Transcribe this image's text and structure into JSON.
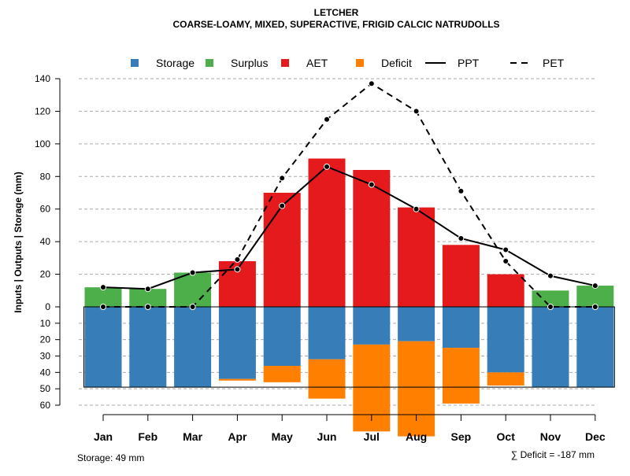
{
  "chart_data": {
    "type": "bar",
    "title": "LETCHER",
    "subtitle": "COARSE-LOAMY, MIXED, SUPERACTIVE, FRIGID CALCIC NATRUDOLLS",
    "ylabel": "Inputs | Outputs | Storage    (mm)",
    "categories": [
      "Jan",
      "Feb",
      "Mar",
      "Apr",
      "May",
      "Jun",
      "Jul",
      "Aug",
      "Sep",
      "Oct",
      "Nov",
      "Dec"
    ],
    "positive_ticks": [
      "0",
      "20",
      "40",
      "60",
      "80",
      "100",
      "120",
      "140"
    ],
    "negative_ticks": [
      "10",
      "20",
      "30",
      "40",
      "50",
      "60"
    ],
    "ylim_top": [
      0,
      140
    ],
    "ylim_bottom": [
      0,
      60
    ],
    "legend": [
      {
        "label": "Storage",
        "kind": "box",
        "color": "#377eb8"
      },
      {
        "label": "Surplus",
        "kind": "box",
        "color": "#4daf4a"
      },
      {
        "label": "AET",
        "kind": "box",
        "color": "#e41a1c"
      },
      {
        "label": "Deficit",
        "kind": "box",
        "color": "#ff7f00"
      },
      {
        "label": "PPT",
        "kind": "solid"
      },
      {
        "label": "PET",
        "kind": "dashed"
      }
    ],
    "series": [
      {
        "name": "Surplus",
        "color": "#4daf4a",
        "values": [
          12,
          11,
          21,
          0,
          0,
          0,
          0,
          0,
          0,
          0,
          10,
          13
        ]
      },
      {
        "name": "AET",
        "color": "#e41a1c",
        "values": [
          0,
          0,
          0,
          28,
          70,
          91,
          84,
          61,
          38,
          20,
          0,
          0
        ]
      },
      {
        "name": "Storage",
        "color": "#377eb8",
        "values": [
          49,
          49,
          49,
          44,
          36,
          32,
          23,
          21,
          25,
          40,
          49,
          49
        ]
      },
      {
        "name": "Deficit",
        "color": "#ff7f00",
        "values": [
          0,
          0,
          0,
          1,
          10,
          24,
          53,
          58,
          34,
          8,
          0,
          0
        ]
      },
      {
        "name": "PPT",
        "values": [
          12,
          11,
          21,
          23,
          62,
          86,
          75,
          60,
          42,
          35,
          19,
          13
        ]
      },
      {
        "name": "PET",
        "values": [
          0,
          0,
          0,
          29,
          79,
          115,
          137,
          120,
          71,
          28,
          0,
          0
        ]
      }
    ],
    "storage_capacity": 49,
    "storage_note": "Storage: 49 mm",
    "deficit_note": "∑ Deficit = -187 mm",
    "colors": {
      "gridline": "#aaaaaa",
      "line": "#000000"
    }
  }
}
